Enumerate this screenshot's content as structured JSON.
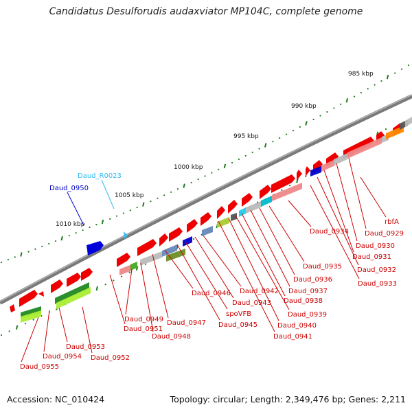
{
  "title": "Candidatus Desulforudis audaxviator MP104C, complete genome",
  "footer": {
    "accession": "Accession: NC_010424",
    "summary": "Topology: circular; Length: 2,349,476 bp; Genes: 2,211"
  },
  "scale_labels": [
    "985 kbp",
    "990 kbp",
    "995 kbp",
    "1000 kbp",
    "1005 kbp",
    "1010 kbp"
  ],
  "gene_labels": [
    "rbfA",
    "Daud_0929",
    "Daud_0930",
    "Daud_0931",
    "Daud_0932",
    "Daud_0933",
    "Daud_0934",
    "Daud_0935",
    "Daud_0936",
    "Daud_0937",
    "Daud_0938",
    "Daud_0939",
    "Daud_0940",
    "Daud_0941",
    "Daud_0942",
    "Daud_0943",
    "spoVFB",
    "Daud_0945",
    "Daud_0946",
    "Daud_0947",
    "Daud_0948",
    "Daud_0949",
    "Daud_0951",
    "Daud_0952",
    "Daud_0953",
    "Daud_0954",
    "Daud_0955"
  ],
  "top_labels": [
    {
      "text": "Daud_R0023",
      "color": "#33bbee"
    },
    {
      "text": "Daud_0950",
      "color": "#0000cc"
    }
  ],
  "colors": {
    "backbone": "#808080",
    "gene": "#ee0000",
    "label": "#cc0000",
    "tick": "#1e7a1e"
  }
}
